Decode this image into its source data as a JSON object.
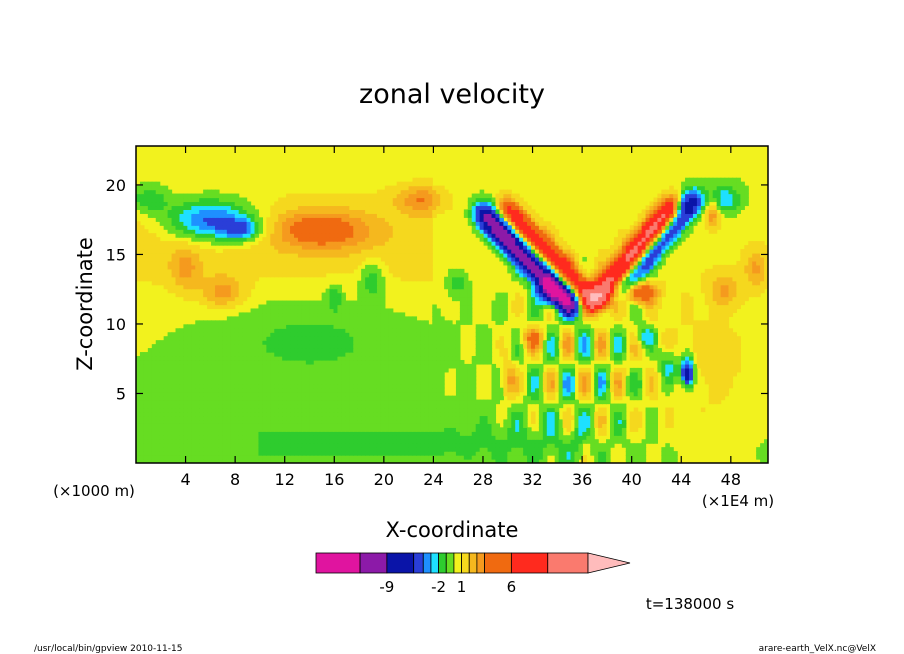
{
  "chart_data": {
    "type": "heatmap",
    "title": "zonal velocity",
    "xlabel": "X-coordinate",
    "ylabel": "Z-coordinate",
    "x_scale_note": "(×1E4 m)",
    "y_scale_note": "(×1000 m)",
    "xlim": [
      0,
      51
    ],
    "ylim": [
      0,
      22.8
    ],
    "x_ticks": [
      4,
      8,
      12,
      16,
      20,
      24,
      28,
      32,
      36,
      40,
      44,
      48
    ],
    "y_ticks": [
      5,
      10,
      15,
      20
    ],
    "grid": false,
    "contour_levels": [
      -12,
      -9,
      -6,
      -4,
      -3,
      -2,
      -1,
      0,
      1,
      2,
      3,
      4,
      6,
      9,
      12
    ],
    "level_colors": [
      "#e0149f",
      "#8c1aa8",
      "#0a14a8",
      "#2a3ed8",
      "#1e90ff",
      "#1ee0ff",
      "#2ecc2e",
      "#66dd22",
      "#f2f21e",
      "#f5d81e",
      "#f5b81e",
      "#f59a1e",
      "#f06a10",
      "#ff2a1e",
      "#fa7a6e",
      "#ffbcbc"
    ],
    "colorbar": {
      "tick_labels": [
        "-9",
        "-2",
        "1",
        "6"
      ],
      "tick_values": [
        -9,
        -2,
        1,
        6
      ],
      "extend": "max"
    },
    "time_label": "t=138000 s"
  },
  "footer": {
    "left": "/usr/local/bin/gpview  2010-11-15",
    "right": "arare-earth_VelX.nc@VelX"
  }
}
